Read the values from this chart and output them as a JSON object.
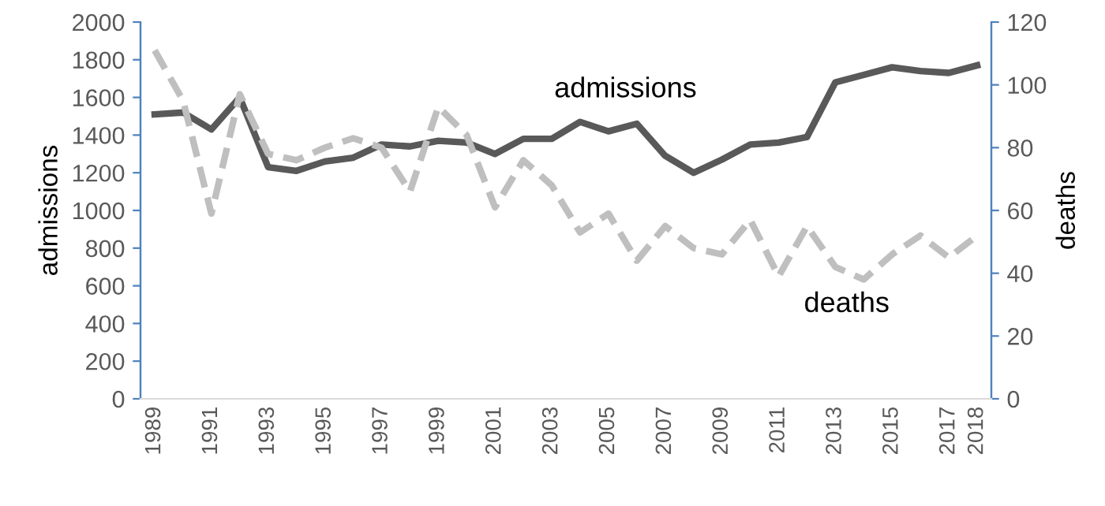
{
  "chart_data": {
    "type": "line",
    "ylabel": "admissions",
    "y2label": "deaths",
    "categories": [
      "1989",
      null,
      "1991",
      null,
      "1993",
      null,
      "1995",
      null,
      "1997",
      null,
      "1999",
      null,
      "2001",
      null,
      "2003",
      null,
      "2005",
      null,
      "2007",
      null,
      "2009",
      null,
      "2011",
      null,
      "2013",
      null,
      "2015",
      null,
      "2017",
      "2018"
    ],
    "series": [
      {
        "name": "admissions",
        "color": "#595959",
        "line_style": "solid",
        "values": [
          1510,
          1520,
          1430,
          1600,
          1230,
          1210,
          1260,
          1280,
          1350,
          1340,
          1370,
          1360,
          1300,
          1380,
          1380,
          1470,
          1420,
          1460,
          1290,
          1200,
          1270,
          1350,
          1360,
          1390,
          1680,
          1720,
          1760,
          1740,
          1730,
          1770
        ]
      },
      {
        "name": "deaths",
        "color": "#bfbfbf",
        "line_style": "dashed",
        "axis": "y2",
        "values": [
          111,
          95,
          59,
          97,
          78,
          76,
          80,
          83,
          80,
          66,
          93,
          84,
          61,
          76,
          68,
          53,
          59,
          44,
          55,
          48,
          46,
          57,
          39,
          55,
          42,
          38,
          46,
          52,
          45,
          52
        ]
      }
    ],
    "ylim": [
      0,
      2000
    ],
    "yticks": [
      0,
      200,
      400,
      600,
      800,
      1000,
      1200,
      1400,
      1600,
      1800,
      2000
    ],
    "y2lim": [
      0,
      120
    ],
    "y2ticks": [
      0,
      20,
      40,
      60,
      80,
      100,
      120
    ],
    "grid": false,
    "legend": false
  }
}
